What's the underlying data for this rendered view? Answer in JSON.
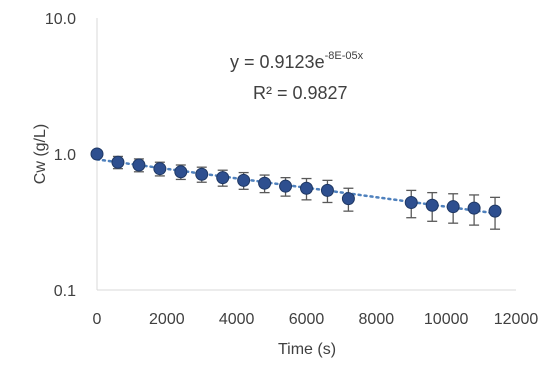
{
  "chart_data": {
    "type": "scatter",
    "xlabel": "Time (s)",
    "ylabel": "Cw (g/L)",
    "xlim": [
      0,
      12000
    ],
    "ylim": [
      0.1,
      10
    ],
    "y_scale": "log",
    "x_ticks": [
      0,
      2000,
      4000,
      6000,
      8000,
      10000,
      12000
    ],
    "x_tick_labels": [
      "0",
      "2000",
      "4000",
      "6000",
      "8000",
      "10000",
      "12000"
    ],
    "y_ticks": [
      0.1,
      1,
      10
    ],
    "y_tick_labels": [
      "0.1",
      "1.0",
      "10.0"
    ],
    "grid": false,
    "marker_color": "#2e4f8f",
    "trendline_color": "#4f81bd",
    "errorbar_color": "#595959",
    "series": [
      {
        "x": [
          0,
          600,
          1200,
          1800,
          2400,
          3000,
          3600,
          4200,
          4800,
          5400,
          6000,
          6600,
          7200,
          9000,
          9600,
          10200,
          10800,
          11400
        ],
        "y": [
          1.0,
          0.87,
          0.83,
          0.78,
          0.74,
          0.71,
          0.67,
          0.64,
          0.61,
          0.58,
          0.56,
          0.54,
          0.47,
          0.44,
          0.42,
          0.41,
          0.4,
          0.38
        ],
        "err": [
          0.04,
          0.09,
          0.09,
          0.09,
          0.09,
          0.09,
          0.09,
          0.09,
          0.09,
          0.09,
          0.1,
          0.1,
          0.09,
          0.1,
          0.1,
          0.1,
          0.1,
          0.1
        ]
      }
    ],
    "trendline": {
      "type": "exponential",
      "a": 0.9123,
      "b": -8e-05,
      "equation_main": "y = 0.9123e",
      "equation_exp": "-8E-05x",
      "r2_label": "R² = 0.9827"
    }
  }
}
